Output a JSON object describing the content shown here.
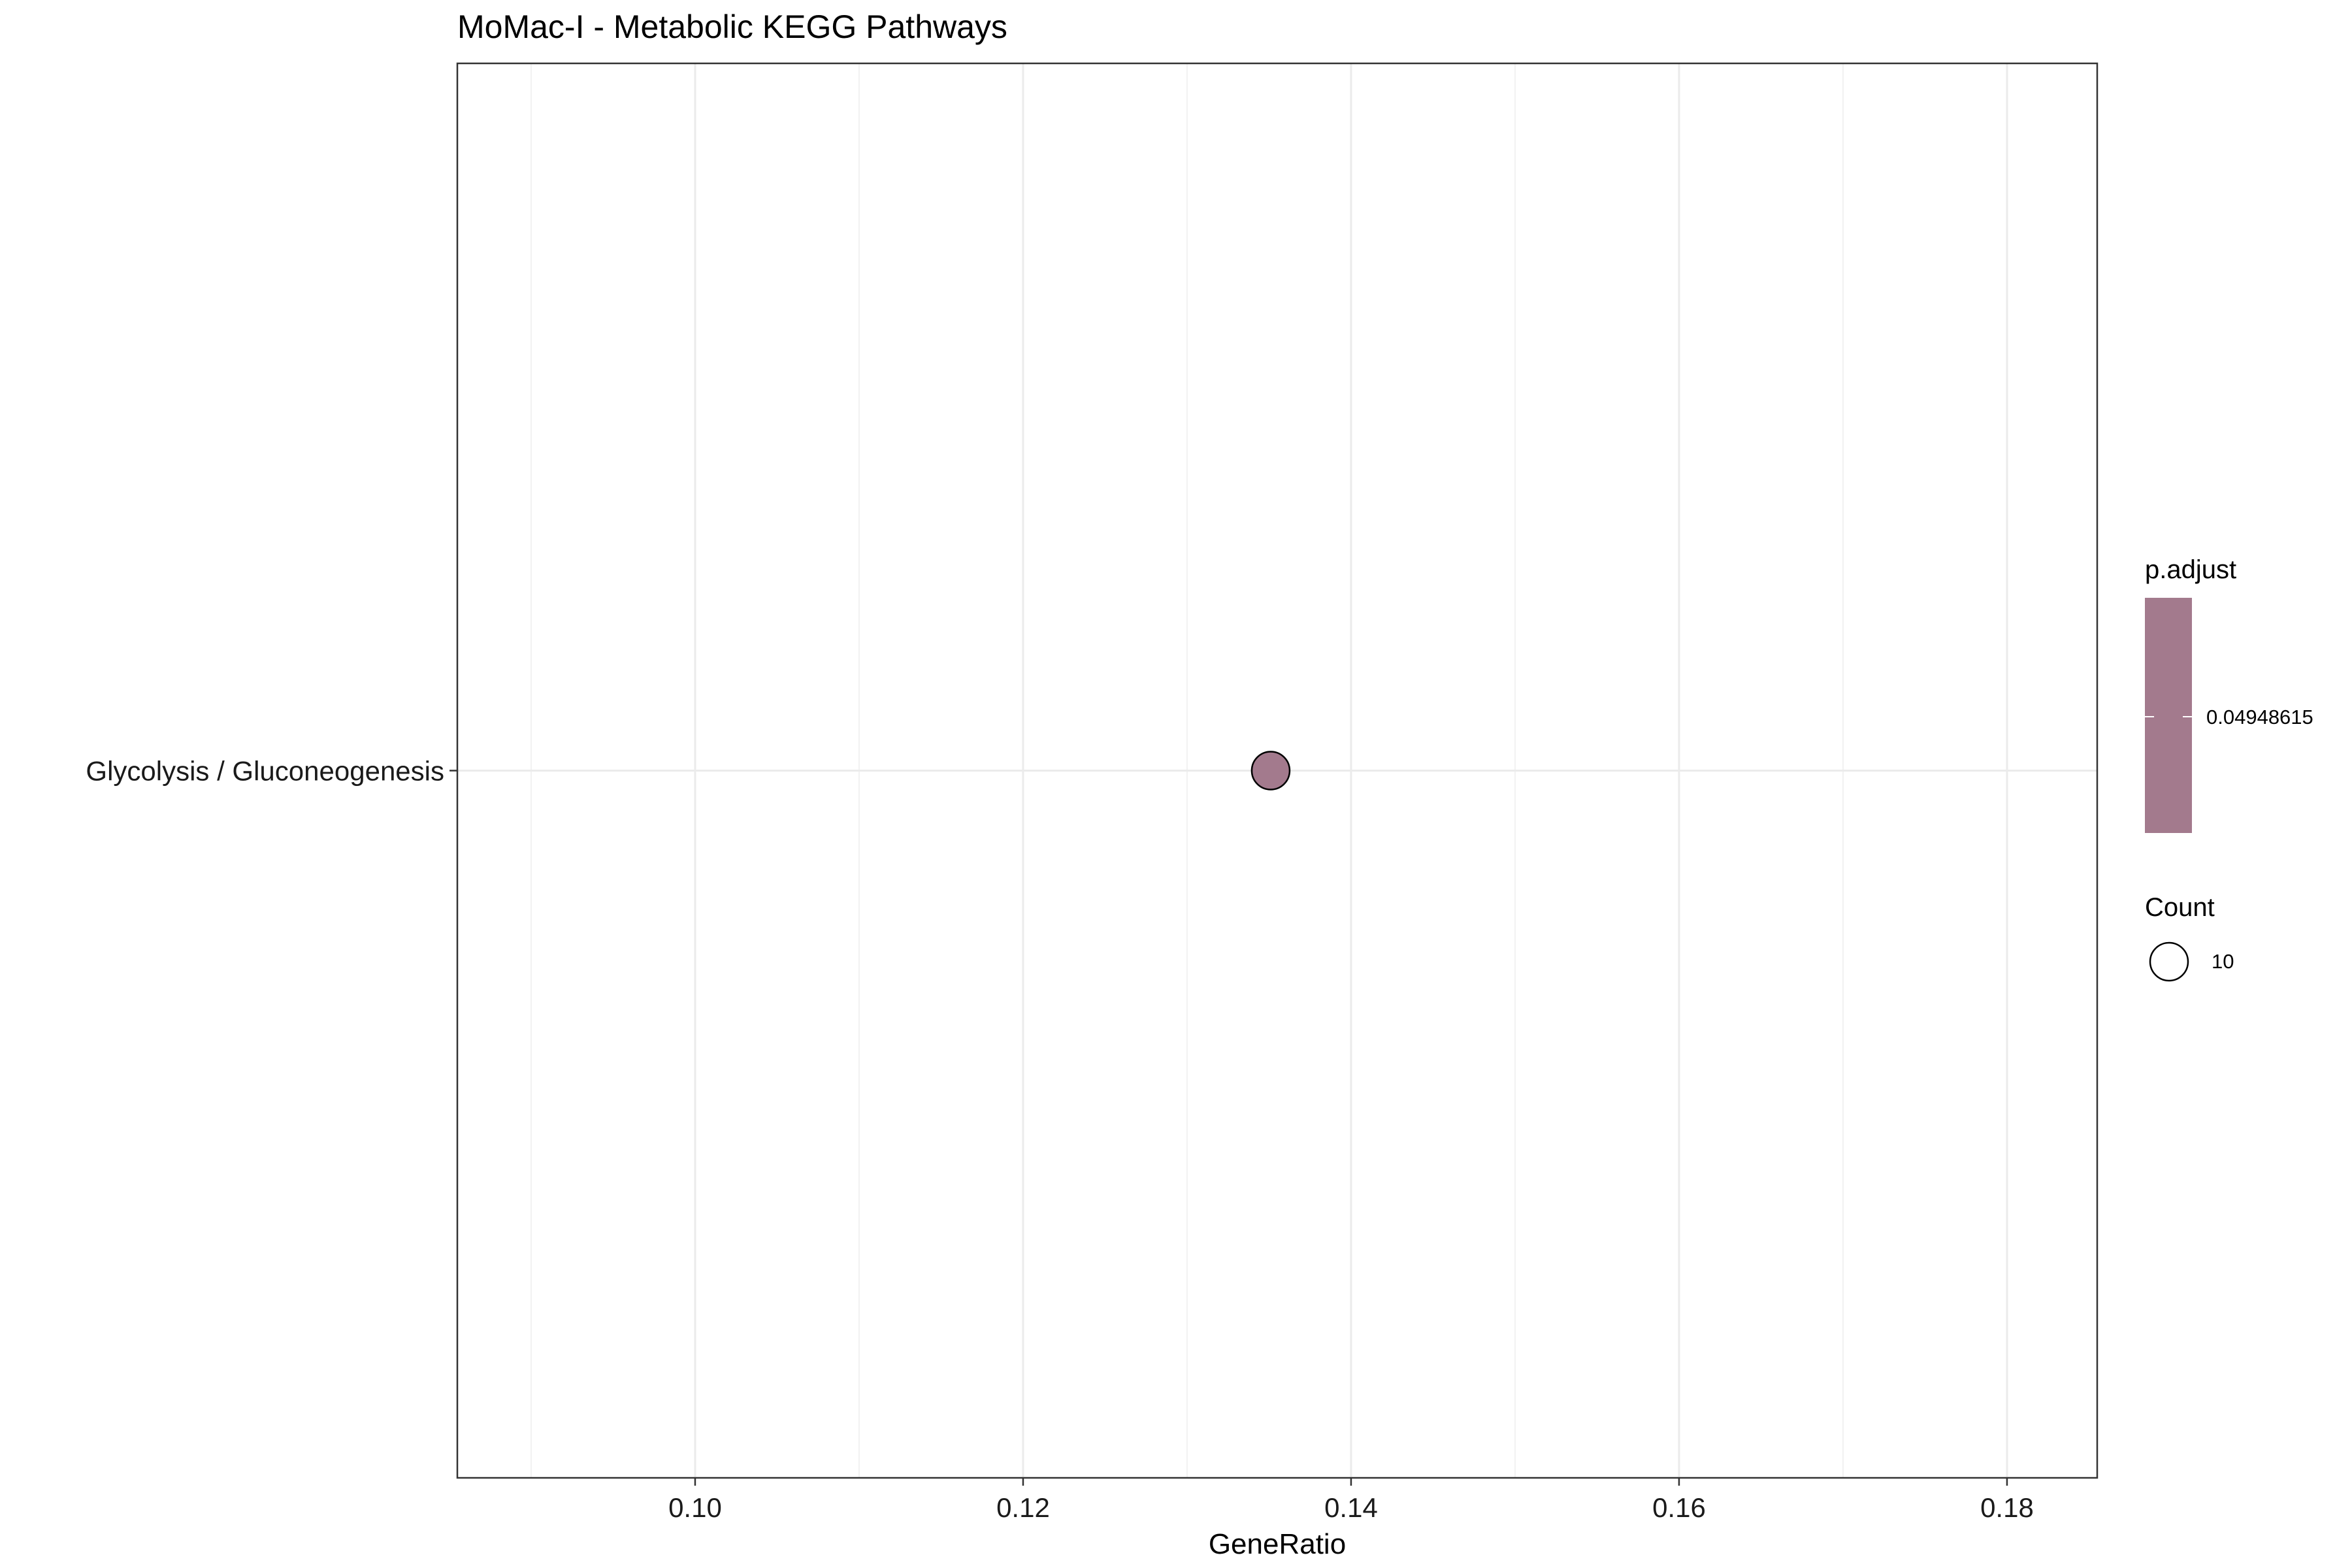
{
  "chart_data": {
    "type": "scatter",
    "title": "MoMac-I - Metabolic KEGG Pathways",
    "xlabel": "GeneRatio",
    "ylabel": "",
    "xlim": [
      0.0855,
      0.1855
    ],
    "x_ticks": [
      "0.10",
      "0.12",
      "0.14",
      "0.16",
      "0.18"
    ],
    "x_tick_values": [
      0.1,
      0.12,
      0.14,
      0.16,
      0.18
    ],
    "categories": [
      "Glycolysis / Gluconeogenesis"
    ],
    "points": [
      {
        "category": "Glycolysis / Gluconeogenesis",
        "x": 0.1351,
        "count": 10,
        "p_adjust": 0.04948615
      }
    ],
    "grid": true,
    "legend_position": "right",
    "point_color": "#a37a8d",
    "legend": {
      "color_title": "p.adjust",
      "color_label": "0.04948615",
      "size_title": "Count",
      "size_label": "10"
    }
  }
}
